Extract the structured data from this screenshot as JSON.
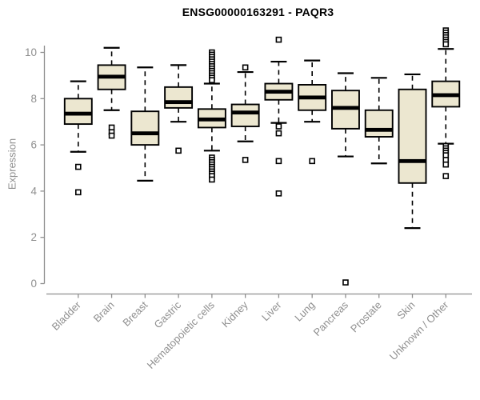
{
  "chart_data": {
    "type": "boxplot",
    "title": "ENSG00000163291 - PAQR3",
    "ylabel": "Expression",
    "xlabel": "",
    "yticks": [
      0,
      2,
      4,
      6,
      8,
      10
    ],
    "ylim": [
      -0.45,
      11.1
    ],
    "grid": false,
    "legend": "none",
    "box_fill": "#ece7d0",
    "box_stroke": "#000000",
    "axis_color": "#8f8f8f",
    "categories": [
      "Bladder",
      "Brain",
      "Breast",
      "Gastric",
      "Hematopoietic cells",
      "Kidney",
      "Liver",
      "Lung",
      "Pancreas",
      "Prostate",
      "Skin",
      "Unknown / Other"
    ],
    "series": [
      {
        "category": "Bladder",
        "whisker_low": 5.7,
        "q1": 6.9,
        "median": 7.35,
        "q3": 8.0,
        "whisker_high": 8.75,
        "outliers": [
          5.05,
          3.95
        ]
      },
      {
        "category": "Brain",
        "whisker_low": 7.5,
        "q1": 8.4,
        "median": 8.95,
        "q3": 9.45,
        "whisker_high": 10.2,
        "outliers": [
          6.75,
          6.55,
          6.4
        ]
      },
      {
        "category": "Breast",
        "whisker_low": 4.45,
        "q1": 6.0,
        "median": 6.5,
        "q3": 7.45,
        "whisker_high": 9.35,
        "outliers": []
      },
      {
        "category": "Gastric",
        "whisker_low": 7.0,
        "q1": 7.6,
        "median": 7.85,
        "q3": 8.5,
        "whisker_high": 9.45,
        "outliers": [
          5.75
        ]
      },
      {
        "category": "Hematopoietic cells",
        "whisker_low": 5.75,
        "q1": 6.75,
        "median": 7.1,
        "q3": 7.55,
        "whisker_high": 8.65,
        "outliers": [
          10.0,
          9.9,
          9.8,
          9.7,
          9.6,
          9.5,
          9.4,
          9.3,
          9.2,
          9.1,
          9.0,
          8.9,
          8.8,
          5.45,
          5.35,
          5.25,
          5.15,
          5.05,
          4.95,
          4.85,
          4.75,
          4.65,
          4.5
        ]
      },
      {
        "category": "Kidney",
        "whisker_low": 6.15,
        "q1": 6.8,
        "median": 7.4,
        "q3": 7.75,
        "whisker_high": 9.15,
        "outliers": [
          9.35,
          5.35
        ]
      },
      {
        "category": "Liver",
        "whisker_low": 6.95,
        "q1": 7.95,
        "median": 8.3,
        "q3": 8.65,
        "whisker_high": 9.6,
        "outliers": [
          10.55,
          6.8,
          6.5,
          5.3,
          3.9
        ]
      },
      {
        "category": "Lung",
        "whisker_low": 7.0,
        "q1": 7.5,
        "median": 8.05,
        "q3": 8.6,
        "whisker_high": 9.65,
        "outliers": [
          5.3
        ]
      },
      {
        "category": "Pancreas",
        "whisker_low": 5.5,
        "q1": 6.7,
        "median": 7.6,
        "q3": 8.35,
        "whisker_high": 9.1,
        "outliers": [
          0.05
        ]
      },
      {
        "category": "Prostate",
        "whisker_low": 5.2,
        "q1": 6.35,
        "median": 6.65,
        "q3": 7.5,
        "whisker_high": 8.9,
        "outliers": []
      },
      {
        "category": "Skin",
        "whisker_low": 2.4,
        "q1": 4.35,
        "median": 5.3,
        "q3": 8.4,
        "whisker_high": 9.05,
        "outliers": []
      },
      {
        "category": "Unknown / Other",
        "whisker_low": 6.05,
        "q1": 7.65,
        "median": 8.15,
        "q3": 8.75,
        "whisker_high": 10.15,
        "outliers": [
          10.95,
          10.85,
          10.75,
          10.65,
          10.55,
          10.45,
          10.35,
          5.95,
          5.85,
          5.75,
          5.65,
          5.55,
          5.35,
          5.15,
          4.65
        ]
      }
    ]
  }
}
